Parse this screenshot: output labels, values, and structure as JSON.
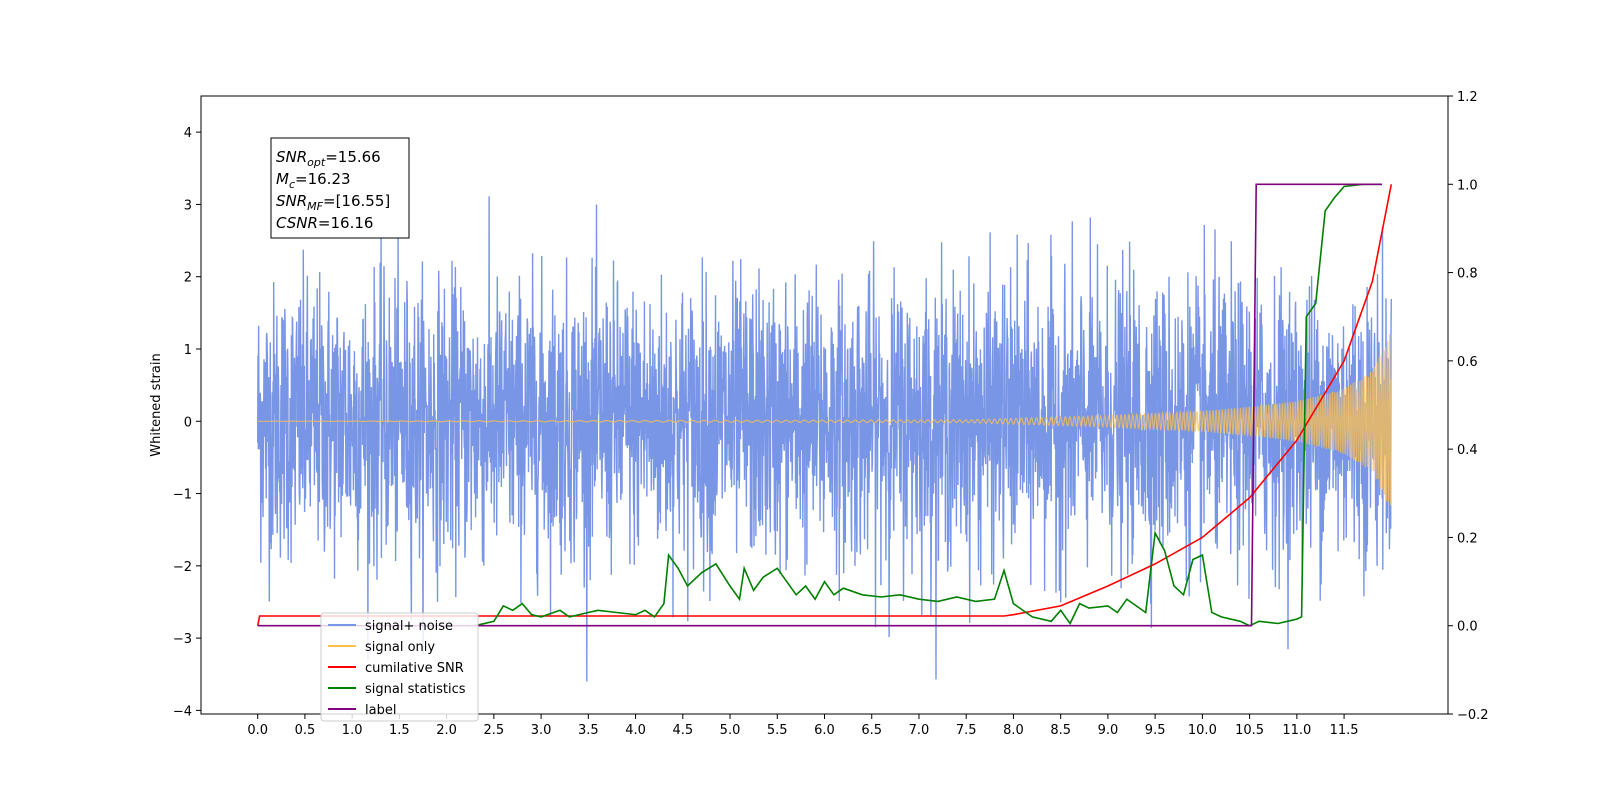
{
  "chart_data": {
    "type": "line",
    "title": "",
    "xlabel": "",
    "ylabel": "Whitened strain",
    "y2label": "",
    "xlim": [
      -0.6,
      12.6
    ],
    "ylim": [
      -4.05,
      4.5
    ],
    "y2lim": [
      -0.2,
      1.2
    ],
    "x_ticks": [
      "0.0",
      "0.5",
      "1.0",
      "1.5",
      "2.0",
      "2.5",
      "3.0",
      "3.5",
      "4.0",
      "4.5",
      "5.0",
      "5.5",
      "6.0",
      "6.5",
      "7.0",
      "7.5",
      "8.0",
      "8.5",
      "9.0",
      "9.5",
      "10.0",
      "10.5",
      "11.0",
      "11.5"
    ],
    "y_ticks": [
      "4",
      "3",
      "2",
      "1",
      "0",
      "−1",
      "−2",
      "−3",
      "−4"
    ],
    "y2_ticks": [
      "1.2",
      "1.0",
      "0.8",
      "0.6",
      "0.4",
      "0.2",
      "0.0",
      "−0.2"
    ],
    "grid": false,
    "legend_position": "lower-left",
    "annotation": {
      "lines": [
        {
          "base": "SNR",
          "sub": "opt",
          "value": "=15.66"
        },
        {
          "base": "M",
          "sub": "c",
          "value": "=16.23"
        },
        {
          "base": "SNR",
          "sub": "MF",
          "value": "=[16.55]"
        },
        {
          "base": "CSNR",
          "sub": "",
          "value": "=16.16"
        }
      ]
    },
    "legend": [
      {
        "label": "signal+ noise",
        "color": "#7895e6"
      },
      {
        "label": "signal only",
        "color": "#ffc04d"
      },
      {
        "label": "cumilative SNR",
        "color": "#ff0000"
      },
      {
        "label": "signal statistics",
        "color": "#008000"
      },
      {
        "label": "label",
        "color": "#800080"
      }
    ],
    "series": [
      {
        "name": "signal+ noise",
        "axis": "left",
        "color": "#7895e6",
        "description": "whitened noisy data, sigma ~1, x from 0.0 to 12.0",
        "x_range": [
          0.0,
          12.0
        ],
        "noise_sigma": 1.0
      },
      {
        "name": "signal only",
        "axis": "left",
        "color": "#ffc04d",
        "description": "chirp signal, amplitude growing toward merger",
        "x_range": [
          0.0,
          12.0
        ],
        "envelope": {
          "x": [
            0.0,
            7.5,
            9.0,
            10.0,
            10.5,
            11.0,
            11.5,
            11.8,
            12.0
          ],
          "amp": [
            0.0,
            0.02,
            0.08,
            0.14,
            0.2,
            0.28,
            0.45,
            0.7,
            1.25
          ]
        }
      },
      {
        "name": "cumilative SNR",
        "axis": "right",
        "color": "#ff0000",
        "x": [
          0.0,
          0.02,
          7.9,
          8.0,
          8.5,
          9.0,
          9.5,
          10.0,
          10.5,
          11.0,
          11.5,
          11.8,
          12.0
        ],
        "y": [
          0.0,
          0.022,
          0.022,
          0.025,
          0.045,
          0.09,
          0.14,
          0.2,
          0.29,
          0.42,
          0.6,
          0.78,
          1.0
        ]
      },
      {
        "name": "signal statistics",
        "axis": "right",
        "color": "#008000",
        "x": [
          2.3,
          2.5,
          2.6,
          2.7,
          2.8,
          2.9,
          3.0,
          3.2,
          3.3,
          3.5,
          3.6,
          3.8,
          4.0,
          4.1,
          4.2,
          4.3,
          4.35,
          4.45,
          4.55,
          4.7,
          4.85,
          5.0,
          5.1,
          5.15,
          5.25,
          5.35,
          5.5,
          5.6,
          5.7,
          5.8,
          5.9,
          6.0,
          6.1,
          6.2,
          6.4,
          6.6,
          6.8,
          7.0,
          7.2,
          7.4,
          7.6,
          7.8,
          7.9,
          8.0,
          8.2,
          8.4,
          8.5,
          8.6,
          8.7,
          8.8,
          9.0,
          9.1,
          9.2,
          9.4,
          9.5,
          9.6,
          9.7,
          9.8,
          9.9,
          10.0,
          10.1,
          10.2,
          10.4,
          10.5,
          10.6,
          10.8,
          10.9,
          11.0,
          11.05,
          11.1,
          11.2,
          11.3,
          11.4,
          11.5,
          11.7,
          11.9
        ],
        "y": [
          0.0,
          0.01,
          0.045,
          0.035,
          0.05,
          0.025,
          0.02,
          0.035,
          0.02,
          0.03,
          0.035,
          0.03,
          0.025,
          0.035,
          0.02,
          0.05,
          0.16,
          0.13,
          0.09,
          0.12,
          0.14,
          0.09,
          0.06,
          0.13,
          0.08,
          0.11,
          0.13,
          0.1,
          0.07,
          0.09,
          0.06,
          0.1,
          0.07,
          0.085,
          0.07,
          0.065,
          0.07,
          0.06,
          0.055,
          0.065,
          0.055,
          0.06,
          0.125,
          0.05,
          0.02,
          0.01,
          0.035,
          0.005,
          0.05,
          0.04,
          0.045,
          0.03,
          0.06,
          0.03,
          0.21,
          0.17,
          0.09,
          0.07,
          0.15,
          0.16,
          0.03,
          0.02,
          0.01,
          0.0,
          0.01,
          0.005,
          0.01,
          0.015,
          0.02,
          0.7,
          0.73,
          0.94,
          0.97,
          0.995,
          1.0,
          1.0
        ]
      },
      {
        "name": "label",
        "axis": "right",
        "color": "#800080",
        "x": [
          0.0,
          10.52,
          10.57,
          11.9
        ],
        "y": [
          0.0,
          0.0,
          1.0,
          1.0
        ]
      }
    ]
  }
}
